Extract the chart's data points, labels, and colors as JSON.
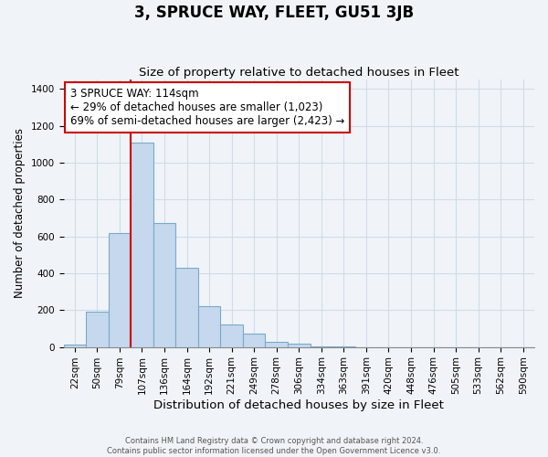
{
  "title": "3, SPRUCE WAY, FLEET, GU51 3JB",
  "subtitle": "Size of property relative to detached houses in Fleet",
  "xlabel": "Distribution of detached houses by size in Fleet",
  "ylabel": "Number of detached properties",
  "bar_labels": [
    "22sqm",
    "50sqm",
    "79sqm",
    "107sqm",
    "136sqm",
    "164sqm",
    "192sqm",
    "221sqm",
    "249sqm",
    "278sqm",
    "306sqm",
    "334sqm",
    "363sqm",
    "391sqm",
    "420sqm",
    "448sqm",
    "476sqm",
    "505sqm",
    "533sqm",
    "562sqm",
    "590sqm"
  ],
  "bar_heights": [
    15,
    190,
    620,
    1110,
    670,
    430,
    220,
    120,
    70,
    30,
    20,
    5,
    2,
    0,
    0,
    0,
    0,
    0,
    0,
    0,
    0
  ],
  "bar_color": "#c5d8ee",
  "bar_edge_color": "#7aaac8",
  "vline_index": 3,
  "vline_color": "#cc0000",
  "annotation_text": "3 SPRUCE WAY: 114sqm\n← 29% of detached houses are smaller (1,023)\n69% of semi-detached houses are larger (2,423) →",
  "annotation_box_edgecolor": "#cc0000",
  "annotation_fontsize": 8.5,
  "ylim": [
    0,
    1450
  ],
  "yticks": [
    0,
    200,
    400,
    600,
    800,
    1000,
    1200,
    1400
  ],
  "grid_color": "#d0dce8",
  "background_color": "#f0f4f8",
  "footer_line1": "Contains HM Land Registry data © Crown copyright and database right 2024.",
  "footer_line2": "Contains public sector information licensed under the Open Government Licence v3.0.",
  "title_fontsize": 12,
  "subtitle_fontsize": 9.5,
  "xlabel_fontsize": 9.5,
  "ylabel_fontsize": 8.5,
  "tick_fontsize": 7.5
}
